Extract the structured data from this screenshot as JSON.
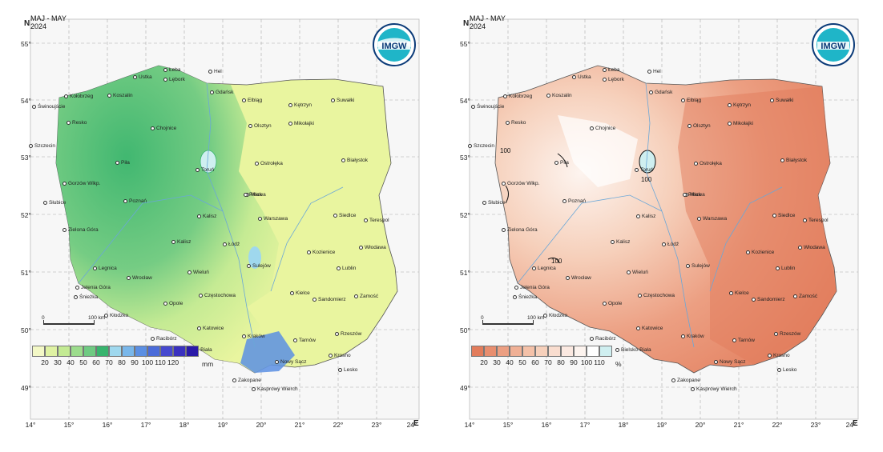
{
  "maps": [
    {
      "id": "precip",
      "title_line1": "MAJ - MAY",
      "title_line2": "2024",
      "legend": {
        "colors": [
          "#f3f8c6",
          "#dff2a3",
          "#c3ea93",
          "#9cdc8c",
          "#6fca82",
          "#38b46e",
          "#9fd8ee",
          "#79b7ea",
          "#5b8fe3",
          "#4a6bd9",
          "#4649cf",
          "#3a31bf",
          "#2a1aa8"
        ],
        "ticks": [
          "20",
          "30",
          "40",
          "50",
          "60",
          "70",
          "80",
          "90",
          "100",
          "110",
          "120"
        ],
        "unit": "mm"
      }
    },
    {
      "id": "norm",
      "title_line1": "MAJ - MAY",
      "title_line2": "2024",
      "contour_label": "100",
      "legend": {
        "colors": [
          "#e27c5b",
          "#e88e6f",
          "#ec9f82",
          "#f0b095",
          "#f4c1a8",
          "#f6d0bb",
          "#f9ddcf",
          "#fbe9e1",
          "#fdf4ef",
          "#ffffff",
          "#cfeff0"
        ],
        "ticks": [
          "20",
          "30",
          "40",
          "50",
          "60",
          "70",
          "80",
          "90",
          "100",
          "110"
        ],
        "unit": "%"
      }
    }
  ],
  "axes": {
    "north_label": "N",
    "east_label": "E",
    "lat_ticks": [
      "55°",
      "54°",
      "53°",
      "52°",
      "51°",
      "50°",
      "49°"
    ],
    "lon_ticks": [
      "14°",
      "15°",
      "16°",
      "17°",
      "18°",
      "19°",
      "20°",
      "21°",
      "22°",
      "23°",
      "24°"
    ]
  },
  "scale_bar": {
    "start": "0",
    "end": "100 km"
  },
  "logo_text": "IMGW",
  "cities": [
    "Świnoujście",
    "Kołobrzeg",
    "Koszalin",
    "Ustka",
    "Łeba",
    "Lębork",
    "Hel",
    "Gdańsk",
    "Elbląg",
    "Kętrzyn",
    "Suwałki",
    "Resko",
    "Chojnice",
    "Olsztyn",
    "Mikołajki",
    "Szczecin",
    "Piła",
    "Toruń",
    "Ostrołęka",
    "Białystok",
    "Gorzów Wlkp.",
    "Mława",
    "Słubice",
    "Poznań",
    "Płock",
    "Siedlce",
    "Terespol",
    "Zielona Góra",
    "Kalisz",
    "Warszawa",
    "Legnica",
    "Kołobrzeg",
    "Kalisz",
    "Łódź",
    "Włodawa",
    "Wrocław",
    "Sulejów",
    "Kozienice",
    "Lublin",
    "Jelenia Góra",
    "Śnieżka",
    "Wieluń",
    "Kielce",
    "Zamość",
    "Opole",
    "Częstochowa",
    "Sandomierz",
    "Kłodzko",
    "Katowice",
    "Racibórz",
    "Rzeszów",
    "Kraków",
    "Tarnów",
    "Krosno",
    "Bielsko-Biała",
    "Nowy Sącz",
    "Lesko",
    "Zakopane",
    "Kasprowy Wierch",
    "Legnica",
    "Kłodzko"
  ]
}
